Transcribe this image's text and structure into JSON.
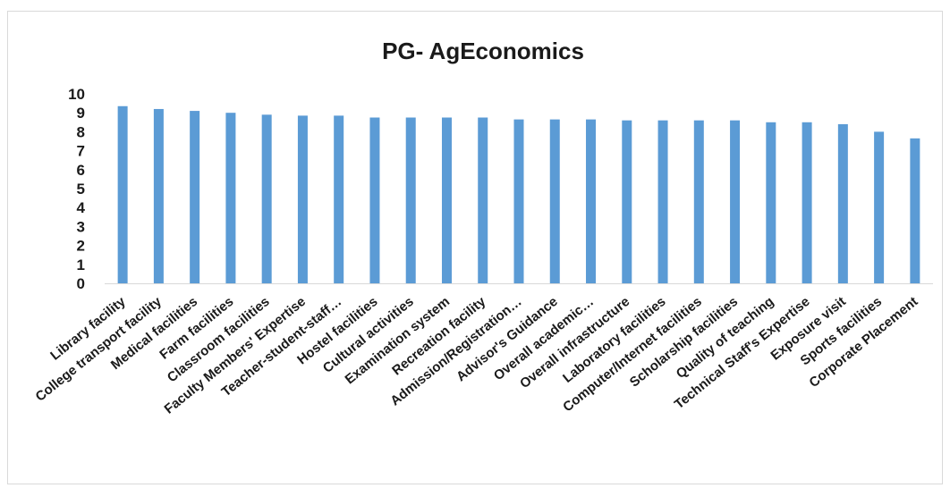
{
  "chart_data": {
    "type": "bar",
    "title": "PG- AgEconomics",
    "xlabel": "",
    "ylabel": "",
    "ylim": [
      0,
      10
    ],
    "yticks": [
      0,
      1,
      2,
      3,
      4,
      5,
      6,
      7,
      8,
      9,
      10
    ],
    "grid": false,
    "bar_color": "#5b9bd5",
    "categories": [
      "Library facility",
      "College transport facility",
      "Medical facilities",
      "Farm facilities",
      "Classroom facilities",
      "Faculty Members' Expertise",
      "Teacher-student-staff…",
      "Hostel facilities",
      "Cultural activities",
      "Examination system",
      "Recreation facility",
      "Admission/Registration…",
      "Advisor's Guidance",
      "Overall academic…",
      "Overall infrastructure",
      "Laboratory facilities",
      "Computer/Internet facilities",
      "Scholarship facilities",
      "Quality of teaching",
      "Technical Staff's Expertise",
      "Exposure visit",
      "Sports facilities",
      "Corporate Placement"
    ],
    "values": [
      9.35,
      9.2,
      9.1,
      9.0,
      8.9,
      8.85,
      8.85,
      8.75,
      8.75,
      8.75,
      8.75,
      8.65,
      8.65,
      8.65,
      8.6,
      8.6,
      8.6,
      8.6,
      8.5,
      8.5,
      8.4,
      8.0,
      7.65
    ]
  }
}
